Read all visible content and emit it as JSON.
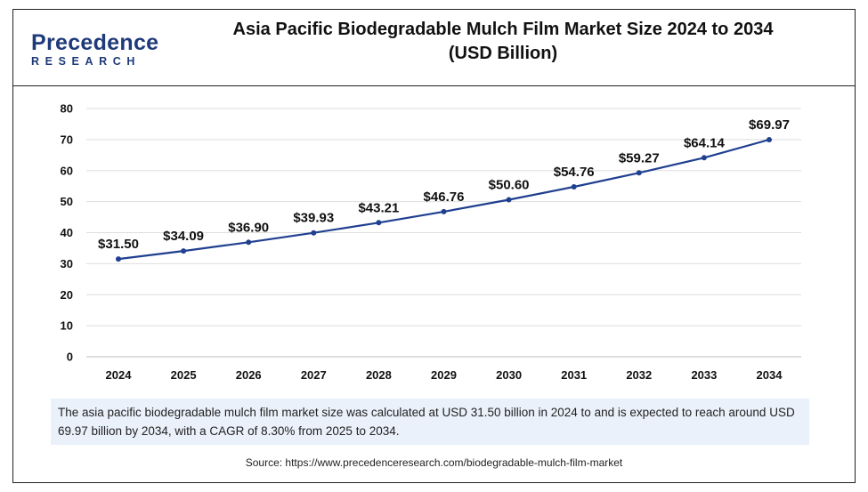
{
  "logo": {
    "top": "Precedence",
    "bottom": "RESEARCH"
  },
  "title_line1": "Asia Pacific Biodegradable Mulch Film Market Size 2024 to 2034",
  "title_line2": "(USD Billion)",
  "chart_data": {
    "type": "line",
    "title": "Asia Pacific Biodegradable Mulch Film Market Size 2024 to 2034 (USD Billion)",
    "x": [
      "2024",
      "2025",
      "2026",
      "2027",
      "2028",
      "2029",
      "2030",
      "2031",
      "2032",
      "2033",
      "2034"
    ],
    "series": [
      {
        "values": [
          31.5,
          34.09,
          36.9,
          39.93,
          43.21,
          46.76,
          50.6,
          54.76,
          59.27,
          64.14,
          69.97
        ]
      }
    ],
    "data_labels": [
      "$31.50",
      "$34.09",
      "$36.90",
      "$39.93",
      "$43.21",
      "$46.76",
      "$50.60",
      "$54.76",
      "$59.27",
      "$64.14",
      "$69.97"
    ],
    "y_ticks": [
      0,
      10,
      20,
      30,
      40,
      50,
      60,
      70,
      80
    ],
    "ylim": [
      0,
      80
    ],
    "grid": "horizontal",
    "line_color": "#1f3f8f",
    "xlabel": "",
    "ylabel": ""
  },
  "caption": "The asia pacific biodegradable mulch film market size was calculated at USD 31.50 billion in 2024 to and is expected to reach around USD 69.97 billion by 2034, with a CAGR of 8.30% from 2025 to 2034.",
  "source": "Source: https://www.precedenceresearch.com/biodegradable-mulch-film-market"
}
